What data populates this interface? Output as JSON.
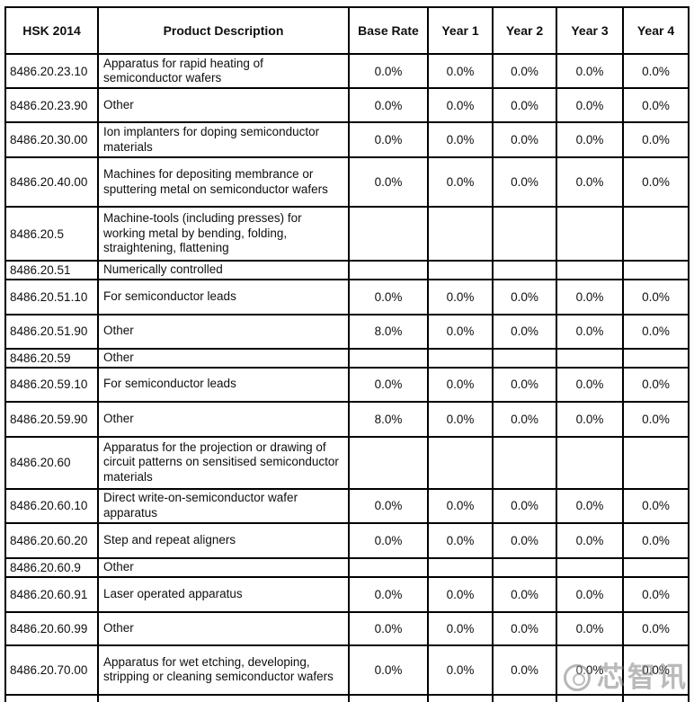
{
  "table": {
    "columns": [
      "HSK 2014",
      "Product Description",
      "Base Rate",
      "Year 1",
      "Year 2",
      "Year 3",
      "Year 4"
    ],
    "rows": [
      {
        "code": "8486.20.23.10",
        "desc": "Apparatus for rapid heating of semiconductor wafers",
        "rates": [
          "0.0%",
          "0.0%",
          "0.0%",
          "0.0%",
          "0.0%"
        ]
      },
      {
        "code": "8486.20.23.90",
        "desc": "Other",
        "rates": [
          "0.0%",
          "0.0%",
          "0.0%",
          "0.0%",
          "0.0%"
        ]
      },
      {
        "code": "8486.20.30.00",
        "desc": "Ion implanters for doping semiconductor materials",
        "rates": [
          "0.0%",
          "0.0%",
          "0.0%",
          "0.0%",
          "0.0%"
        ]
      },
      {
        "code": "8486.20.40.00",
        "desc": "Machines for depositing membrance or sputtering metal on semiconductor wafers",
        "rates": [
          "0.0%",
          "0.0%",
          "0.0%",
          "0.0%",
          "0.0%"
        ]
      },
      {
        "code": "8486.20.5",
        "desc": "Machine-tools (including presses) for working metal by bending, folding, straightening, flattening",
        "rates": [
          "",
          "",
          "",
          "",
          ""
        ]
      },
      {
        "code": "8486.20.51",
        "desc": "Numerically controlled",
        "rates": [
          "",
          "",
          "",
          "",
          ""
        ]
      },
      {
        "code": "8486.20.51.10",
        "desc": "For semiconductor leads",
        "rates": [
          "0.0%",
          "0.0%",
          "0.0%",
          "0.0%",
          "0.0%"
        ]
      },
      {
        "code": "8486.20.51.90",
        "desc": "Other",
        "rates": [
          "8.0%",
          "0.0%",
          "0.0%",
          "0.0%",
          "0.0%"
        ]
      },
      {
        "code": "8486.20.59",
        "desc": "Other",
        "rates": [
          "",
          "",
          "",
          "",
          ""
        ]
      },
      {
        "code": "8486.20.59.10",
        "desc": "For semiconductor leads",
        "rates": [
          "0.0%",
          "0.0%",
          "0.0%",
          "0.0%",
          "0.0%"
        ]
      },
      {
        "code": "8486.20.59.90",
        "desc": "Other",
        "rates": [
          "8.0%",
          "0.0%",
          "0.0%",
          "0.0%",
          "0.0%"
        ]
      },
      {
        "code": "8486.20.60",
        "desc": "Apparatus for the projection or drawing of circuit patterns on sensitised semiconductor materials",
        "rates": [
          "",
          "",
          "",
          "",
          ""
        ]
      },
      {
        "code": "8486.20.60.10",
        "desc": "Direct write-on-semiconductor wafer apparatus",
        "rates": [
          "0.0%",
          "0.0%",
          "0.0%",
          "0.0%",
          "0.0%"
        ]
      },
      {
        "code": "8486.20.60.20",
        "desc": "Step and repeat aligners",
        "rates": [
          "0.0%",
          "0.0%",
          "0.0%",
          "0.0%",
          "0.0%"
        ]
      },
      {
        "code": "8486.20.60.9",
        "desc": "Other",
        "rates": [
          "",
          "",
          "",
          "",
          ""
        ]
      },
      {
        "code": "8486.20.60.91",
        "desc": "Laser operated apparatus",
        "rates": [
          "0.0%",
          "0.0%",
          "0.0%",
          "0.0%",
          "0.0%"
        ]
      },
      {
        "code": "8486.20.60.99",
        "desc": "Other",
        "rates": [
          "0.0%",
          "0.0%",
          "0.0%",
          "0.0%",
          "0.0%"
        ]
      },
      {
        "code": "8486.20.70.00",
        "desc": "Apparatus for wet etching, developing, stripping or cleaning semiconductor wafers",
        "rates": [
          "0.0%",
          "0.0%",
          "0.0%",
          "0.0%",
          "0.0%"
        ]
      }
    ]
  },
  "watermark": {
    "text": "芯智讯",
    "logo": "circular-emblem",
    "color": "#828282"
  }
}
